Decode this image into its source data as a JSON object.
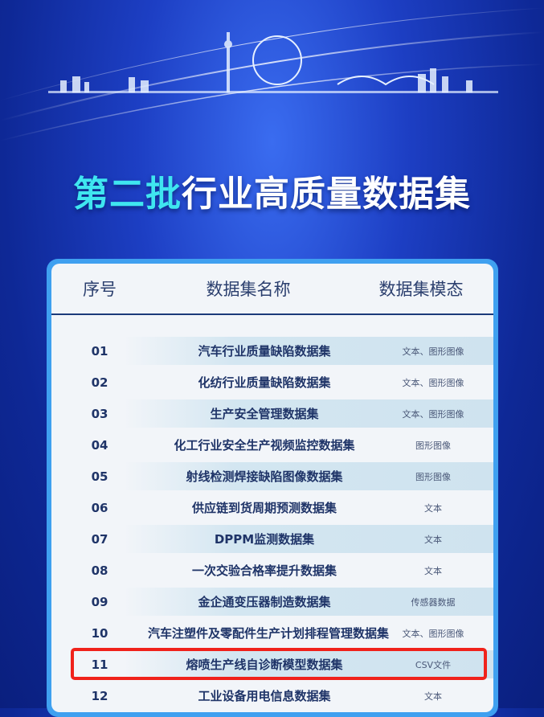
{
  "title": {
    "highlight": "第二批",
    "rest": "行业高质量数据集"
  },
  "table": {
    "headers": [
      "序号",
      "数据集名称",
      "数据集模态"
    ],
    "rows": [
      {
        "num": "01",
        "name": "汽车行业质量缺陷数据集",
        "mode": "文本、图形图像"
      },
      {
        "num": "02",
        "name": "化纺行业质量缺陷数据集",
        "mode": "文本、图形图像"
      },
      {
        "num": "03",
        "name": "生产安全管理数据集",
        "mode": "文本、图形图像"
      },
      {
        "num": "04",
        "name": "化工行业安全生产视频监控数据集",
        "mode": "图形图像"
      },
      {
        "num": "05",
        "name": "射线检测焊接缺陷图像数据集",
        "mode": "图形图像"
      },
      {
        "num": "06",
        "name": "供应链到货周期预测数据集",
        "mode": "文本"
      },
      {
        "num": "07",
        "name": "DPPM监测数据集",
        "mode": "文本"
      },
      {
        "num": "08",
        "name": "一次交验合格率提升数据集",
        "mode": "文本"
      },
      {
        "num": "09",
        "name": "金企通变压器制造数据集",
        "mode": "传感器数据"
      },
      {
        "num": "10",
        "name": "汽车注塑件及零配件生产计划排程管理数据集",
        "mode": "文本、图形图像"
      },
      {
        "num": "11",
        "name": "熔喷生产线自诊断模型数据集",
        "mode": "CSV文件"
      },
      {
        "num": "12",
        "name": "工业设备用电信息数据集",
        "mode": "文本"
      }
    ],
    "highlighted_row": "11"
  },
  "colors": {
    "accent": "#3fe6f0",
    "highlight_box": "#f0221b",
    "text": "#1f3468"
  }
}
